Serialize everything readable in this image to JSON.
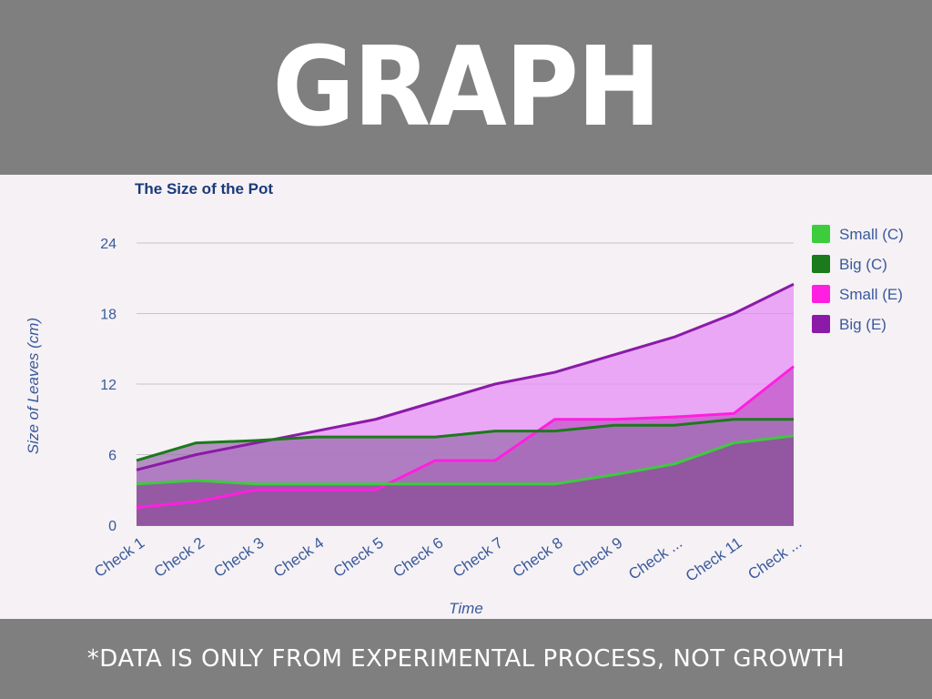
{
  "slide": {
    "title": "GRAPH",
    "footer": "*DATA IS ONLY FROM EXPERIMENTAL PROCESS, NOT GROWTH"
  },
  "chart_data": {
    "type": "area",
    "title": "The Size of the Pot",
    "xlabel": "Time",
    "ylabel": "Size of Leaves (cm)",
    "ylim": [
      0,
      24
    ],
    "yticks": [
      0,
      6,
      12,
      18,
      24
    ],
    "grid": true,
    "legend_position": "right",
    "categories": [
      "Check 1",
      "Check 2",
      "Check 3",
      "Check 4",
      "Check 5",
      "Check 6",
      "Check 7",
      "Check 8",
      "Check 9",
      "Check ...",
      "Check 11",
      "Check ..."
    ],
    "series": [
      {
        "name": "Big (E)",
        "color": "#8b1aa8",
        "fill": "#e58ef4",
        "values": [
          4.7,
          6.0,
          7.0,
          8.0,
          9.0,
          10.5,
          12.0,
          13.0,
          14.5,
          16.0,
          18.0,
          20.5
        ]
      },
      {
        "name": "Small (E)",
        "color": "#ff1fe0",
        "fill": "#c257c8",
        "values": [
          1.5,
          2.0,
          3.0,
          3.0,
          3.0,
          5.5,
          5.5,
          9.0,
          9.0,
          9.2,
          9.5,
          13.5
        ]
      },
      {
        "name": "Big (C)",
        "color": "#1b7a1b",
        "fill": "#9d6fb0",
        "values": [
          5.5,
          7.0,
          7.2,
          7.5,
          7.5,
          7.5,
          8.0,
          8.0,
          8.5,
          8.5,
          9.0,
          9.0
        ]
      },
      {
        "name": "Small (C)",
        "color": "#3ccc3c",
        "fill": "#8c4f98",
        "values": [
          3.5,
          3.8,
          3.5,
          3.5,
          3.5,
          3.5,
          3.5,
          3.5,
          4.3,
          5.2,
          7.0,
          7.6
        ]
      }
    ],
    "legend_order": [
      "Small (C)",
      "Big (C)",
      "Small (E)",
      "Big (E)"
    ]
  }
}
